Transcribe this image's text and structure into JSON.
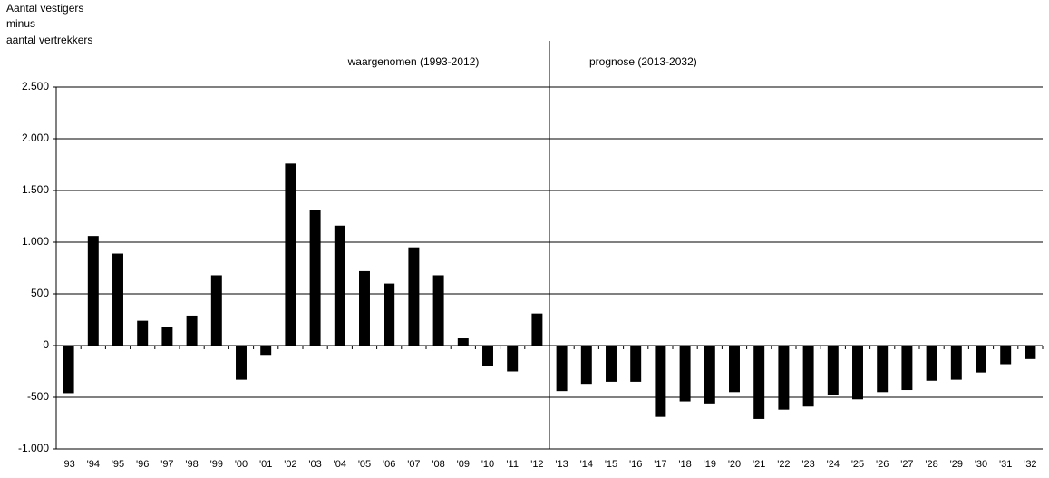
{
  "chart_data": {
    "type": "bar",
    "y_label_lines": [
      "Aantal vestigers",
      "minus",
      "aantal vertrekkers"
    ],
    "annotations": [
      "waargenomen (1993-2012)",
      "prognose (2013-2032)"
    ],
    "categories": [
      "'93",
      "'94",
      "'95",
      "'96",
      "'97",
      "'98",
      "'99",
      "'00",
      "'01",
      "'02",
      "'03",
      "'04",
      "'05",
      "'06",
      "'07",
      "'08",
      "'09",
      "'10",
      "'11",
      "'12",
      "'13",
      "'14",
      "'15",
      "'16",
      "'17",
      "'18",
      "'19",
      "'20",
      "'21",
      "'22",
      "'23",
      "'24",
      "'25",
      "'26",
      "'27",
      "'28",
      "'29",
      "'30",
      "'31",
      "'32"
    ],
    "values": [
      -460,
      1060,
      890,
      240,
      180,
      290,
      680,
      -330,
      -90,
      1760,
      1310,
      1160,
      720,
      600,
      950,
      680,
      70,
      -200,
      -250,
      310,
      -440,
      -370,
      -350,
      -350,
      -690,
      -540,
      -560,
      -450,
      -710,
      -620,
      -590,
      -480,
      -520,
      -450,
      -430,
      -340,
      -330,
      -260,
      -180,
      -130
    ],
    "color": "#000000",
    "ylim": [
      -1000,
      2500
    ],
    "yticks": [
      {
        "value": -1000,
        "label": "-1.000"
      },
      -500,
      0,
      500,
      {
        "value": 1000,
        "label": "1.000"
      },
      {
        "value": 1500,
        "label": "1.500"
      },
      {
        "value": 2000,
        "label": "2.000"
      },
      {
        "value": 2500,
        "label": "2.500"
      }
    ],
    "grid": true
  }
}
